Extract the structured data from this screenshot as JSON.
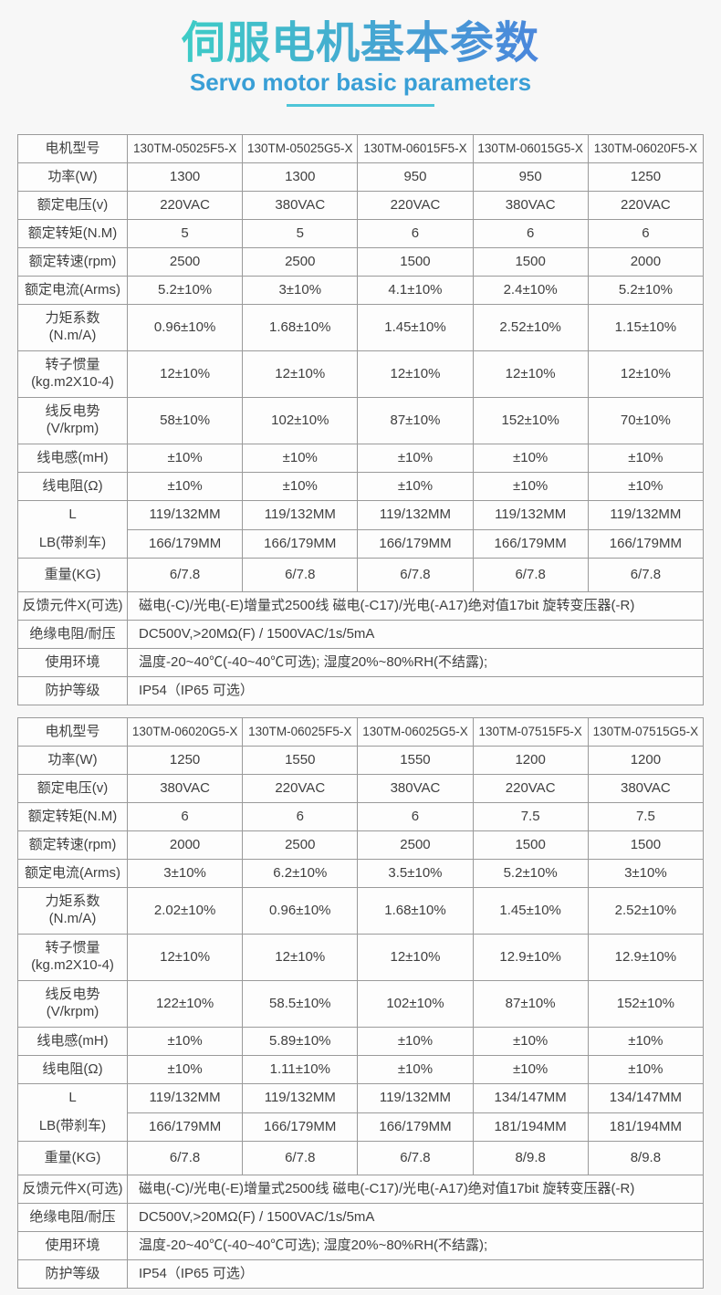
{
  "header": {
    "title": "伺服电机基本参数",
    "subtitle": "Servo motor basic parameters"
  },
  "colors": {
    "title_gradient_start": "#3ecdc6",
    "title_gradient_end": "#4b85dc",
    "subtitle_blue": "#399fd6",
    "underline_cyan": "#4ec5d8",
    "table_border_gray": "#9a9a9a",
    "text_gray": "#3f3f3f",
    "page_background": "#f7f7f7",
    "cell_background": "#fdfdfd"
  },
  "tables": [
    {
      "spec_rows": [
        {
          "label": "电机型号",
          "values": [
            "130TM-05025F5-X",
            "130TM-05025G5-X",
            "130TM-06015F5-X",
            "130TM-06015G5-X",
            "130TM-06020F5-X"
          ]
        },
        {
          "label": "功率(W)",
          "values": [
            "1300",
            "1300",
            "950",
            "950",
            "1250"
          ]
        },
        {
          "label": "额定电压(v)",
          "values": [
            "220VAC",
            "380VAC",
            "220VAC",
            "380VAC",
            "220VAC"
          ]
        },
        {
          "label": "额定转矩(N.M)",
          "values": [
            "5",
            "5",
            "6",
            "6",
            "6"
          ]
        },
        {
          "label": "额定转速(rpm)",
          "values": [
            "2500",
            "2500",
            "1500",
            "1500",
            "2000"
          ]
        },
        {
          "label": "额定电流(Arms)",
          "values": [
            "5.2±10%",
            "3±10%",
            "4.1±10%",
            "2.4±10%",
            "5.2±10%"
          ]
        },
        {
          "label": "力矩系数",
          "label_line2": "(N.m/A)",
          "tall": true,
          "values": [
            "0.96±10%",
            "1.68±10%",
            "1.45±10%",
            "2.52±10%",
            "1.15±10%"
          ]
        },
        {
          "label": "转子惯量",
          "label_line2": "(kg.m2X10-4)",
          "tall": true,
          "values": [
            "12±10%",
            "12±10%",
            "12±10%",
            "12±10%",
            "12±10%"
          ]
        },
        {
          "label": "线反电势",
          "label_line2": "(V/krpm)",
          "tall": true,
          "values": [
            "58±10%",
            "102±10%",
            "87±10%",
            "152±10%",
            "70±10%"
          ]
        },
        {
          "label": "线电感(mH)",
          "values": [
            "±10%",
            "±10%",
            "±10%",
            "±10%",
            "±10%"
          ]
        },
        {
          "label": "线电阻(Ω)",
          "values": [
            "±10%",
            "±10%",
            "±10%",
            "±10%",
            "±10%"
          ]
        }
      ],
      "dual_row": {
        "labels": [
          "L",
          "LB(带刹车)"
        ],
        "top_values": [
          "119/132MM",
          "119/132MM",
          "119/132MM",
          "119/132MM",
          "119/132MM"
        ],
        "bottom_values": [
          "166/179MM",
          "166/179MM",
          "166/179MM",
          "166/179MM",
          "166/179MM"
        ]
      },
      "weight_row": {
        "label": "重量(KG)",
        "values": [
          "6/7.8",
          "6/7.8",
          "6/7.8",
          "6/7.8",
          "6/7.8"
        ]
      },
      "footer_rows": [
        {
          "label": "反馈元件X(可选)",
          "value": "磁电(-C)/光电(-E)增量式2500线  磁电(-C17)/光电(-A17)绝对值17bit  旋转变压器(-R)"
        },
        {
          "label": "绝缘电阻/耐压",
          "value": "DC500V,>20MΩ(F) / 1500VAC/1s/5mA"
        },
        {
          "label": "使用环境",
          "value": "温度-20~40℃(-40~40℃可选); 湿度20%~80%RH(不结露);"
        },
        {
          "label": "防护等级",
          "value": "IP54（IP65 可选）"
        }
      ]
    },
    {
      "spec_rows": [
        {
          "label": "电机型号",
          "values": [
            "130TM-06020G5-X",
            "130TM-06025F5-X",
            "130TM-06025G5-X",
            "130TM-07515F5-X",
            "130TM-07515G5-X"
          ]
        },
        {
          "label": "功率(W)",
          "values": [
            "1250",
            "1550",
            "1550",
            "1200",
            "1200"
          ]
        },
        {
          "label": "额定电压(v)",
          "values": [
            "380VAC",
            "220VAC",
            "380VAC",
            "220VAC",
            "380VAC"
          ]
        },
        {
          "label": "额定转矩(N.M)",
          "values": [
            "6",
            "6",
            "6",
            "7.5",
            "7.5"
          ]
        },
        {
          "label": "额定转速(rpm)",
          "values": [
            "2000",
            "2500",
            "2500",
            "1500",
            "1500"
          ]
        },
        {
          "label": "额定电流(Arms)",
          "values": [
            "3±10%",
            "6.2±10%",
            "3.5±10%",
            "5.2±10%",
            "3±10%"
          ]
        },
        {
          "label": "力矩系数",
          "label_line2": "(N.m/A)",
          "tall": true,
          "values": [
            "2.02±10%",
            "0.96±10%",
            "1.68±10%",
            "1.45±10%",
            "2.52±10%"
          ]
        },
        {
          "label": "转子惯量",
          "label_line2": "(kg.m2X10-4)",
          "tall": true,
          "values": [
            "12±10%",
            "12±10%",
            "12±10%",
            "12.9±10%",
            "12.9±10%"
          ]
        },
        {
          "label": "线反电势",
          "label_line2": "(V/krpm)",
          "tall": true,
          "values": [
            "122±10%",
            "58.5±10%",
            "102±10%",
            "87±10%",
            "152±10%"
          ]
        },
        {
          "label": "线电感(mH)",
          "values": [
            "±10%",
            "5.89±10%",
            "±10%",
            "±10%",
            "±10%"
          ]
        },
        {
          "label": "线电阻(Ω)",
          "values": [
            "±10%",
            "1.11±10%",
            "±10%",
            "±10%",
            "±10%"
          ]
        }
      ],
      "dual_row": {
        "labels": [
          "L",
          "LB(带刹车)"
        ],
        "top_values": [
          "119/132MM",
          "119/132MM",
          "119/132MM",
          "134/147MM",
          "134/147MM"
        ],
        "bottom_values": [
          "166/179MM",
          "166/179MM",
          "166/179MM",
          "181/194MM",
          "181/194MM"
        ]
      },
      "weight_row": {
        "label": "重量(KG)",
        "values": [
          "6/7.8",
          "6/7.8",
          "6/7.8",
          "8/9.8",
          "8/9.8"
        ]
      },
      "footer_rows": [
        {
          "label": "反馈元件X(可选)",
          "value": "磁电(-C)/光电(-E)增量式2500线  磁电(-C17)/光电(-A17)绝对值17bit  旋转变压器(-R)"
        },
        {
          "label": "绝缘电阻/耐压",
          "value": "DC500V,>20MΩ(F) / 1500VAC/1s/5mA"
        },
        {
          "label": "使用环境",
          "value": "温度-20~40℃(-40~40℃可选); 湿度20%~80%RH(不结露);"
        },
        {
          "label": "防护等级",
          "value": "IP54（IP65 可选）"
        }
      ]
    }
  ]
}
